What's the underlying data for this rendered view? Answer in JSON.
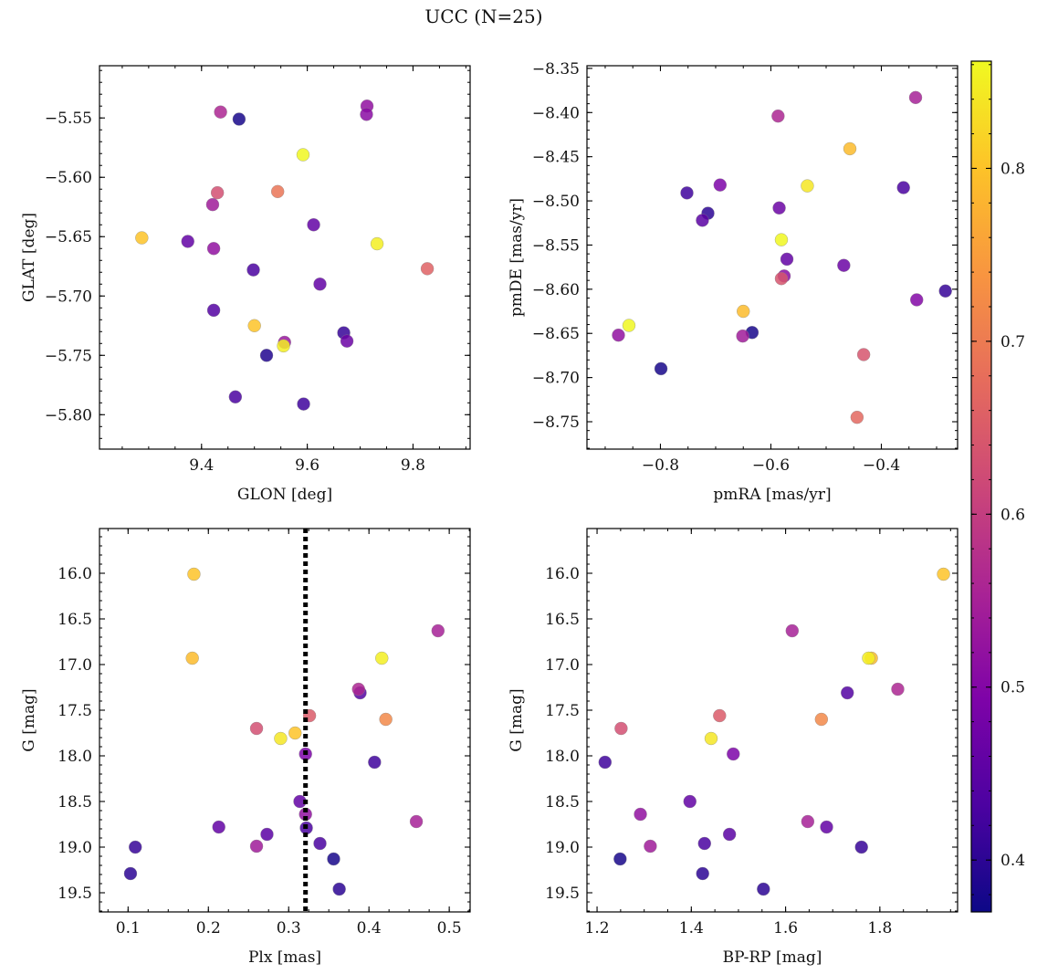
{
  "figure": {
    "title": "UCC (N=25)",
    "colorbar": {
      "min": 0.37,
      "max": 0.862,
      "colormap": "plasma",
      "ticks": [
        0.4,
        0.5,
        0.6,
        0.7,
        0.8
      ],
      "tick_labels": [
        "0.4",
        "0.5",
        "0.6",
        "0.7",
        "0.8"
      ]
    }
  },
  "chart_data": [
    {
      "id": "p1",
      "type": "scatter",
      "title": "",
      "xlabel": "GLON [deg]",
      "ylabel": "GLAT [deg]",
      "xlim": [
        9.207,
        9.908
      ],
      "ylim": [
        -5.829,
        -5.506
      ],
      "y_inverted": false,
      "xticks": [
        9.4,
        9.6,
        9.8
      ],
      "xtick_labels": [
        "9.4",
        "9.6",
        "9.8"
      ],
      "yticks": [
        -5.55,
        -5.6,
        -5.65,
        -5.7,
        -5.75,
        -5.8
      ],
      "ytick_labels": [
        "−5.55",
        "−5.60",
        "−5.65",
        "−5.70",
        "−5.75",
        "−5.80"
      ],
      "points": [
        {
          "x": 9.713,
          "y": -5.54,
          "c": 0.52
        },
        {
          "x": 9.712,
          "y": -5.547,
          "c": 0.51
        },
        {
          "x": 9.436,
          "y": -5.545,
          "c": 0.56
        },
        {
          "x": 9.471,
          "y": -5.551,
          "c": 0.38
        },
        {
          "x": 9.592,
          "y": -5.581,
          "c": 0.86
        },
        {
          "x": 9.544,
          "y": -5.612,
          "c": 0.69
        },
        {
          "x": 9.43,
          "y": -5.613,
          "c": 0.63
        },
        {
          "x": 9.421,
          "y": -5.623,
          "c": 0.54
        },
        {
          "x": 9.612,
          "y": -5.64,
          "c": 0.46
        },
        {
          "x": 9.287,
          "y": -5.651,
          "c": 0.8
        },
        {
          "x": 9.374,
          "y": -5.654,
          "c": 0.46
        },
        {
          "x": 9.732,
          "y": -5.656,
          "c": 0.85
        },
        {
          "x": 9.423,
          "y": -5.66,
          "c": 0.52
        },
        {
          "x": 9.827,
          "y": -5.677,
          "c": 0.66
        },
        {
          "x": 9.498,
          "y": -5.678,
          "c": 0.43
        },
        {
          "x": 9.624,
          "y": -5.69,
          "c": 0.46
        },
        {
          "x": 9.423,
          "y": -5.712,
          "c": 0.44
        },
        {
          "x": 9.5,
          "y": -5.725,
          "c": 0.8
        },
        {
          "x": 9.669,
          "y": -5.731,
          "c": 0.41
        },
        {
          "x": 9.557,
          "y": -5.739,
          "c": 0.53
        },
        {
          "x": 9.675,
          "y": -5.738,
          "c": 0.47
        },
        {
          "x": 9.555,
          "y": -5.742,
          "c": 0.85
        },
        {
          "x": 9.523,
          "y": -5.75,
          "c": 0.39
        },
        {
          "x": 9.464,
          "y": -5.785,
          "c": 0.43
        },
        {
          "x": 9.593,
          "y": -5.791,
          "c": 0.42
        }
      ]
    },
    {
      "id": "p2",
      "type": "scatter",
      "title": "",
      "xlabel": "pmRA [mas/yr]",
      "ylabel": "pmDE [mas/yr]",
      "xlim": [
        -0.933,
        -0.262
      ],
      "ylim": [
        -8.781,
        -8.347
      ],
      "y_inverted": false,
      "xticks": [
        -0.8,
        -0.6,
        -0.4
      ],
      "xtick_labels": [
        "−0.8",
        "−0.6",
        "−0.4"
      ],
      "yticks": [
        -8.35,
        -8.4,
        -8.45,
        -8.5,
        -8.55,
        -8.6,
        -8.65,
        -8.7,
        -8.75
      ],
      "ytick_labels": [
        "−8.35",
        "−8.40",
        "−8.45",
        "−8.50",
        "−8.55",
        "−8.60",
        "−8.65",
        "−8.70",
        "−8.75"
      ],
      "points": [
        {
          "x": -0.338,
          "y": -8.383,
          "c": 0.55
        },
        {
          "x": -0.587,
          "y": -8.404,
          "c": 0.56
        },
        {
          "x": -0.457,
          "y": -8.441,
          "c": 0.79
        },
        {
          "x": -0.534,
          "y": -8.483,
          "c": 0.84
        },
        {
          "x": -0.692,
          "y": -8.482,
          "c": 0.49
        },
        {
          "x": -0.752,
          "y": -8.491,
          "c": 0.42
        },
        {
          "x": -0.36,
          "y": -8.485,
          "c": 0.43
        },
        {
          "x": -0.585,
          "y": -8.508,
          "c": 0.47
        },
        {
          "x": -0.714,
          "y": -8.514,
          "c": 0.4
        },
        {
          "x": -0.724,
          "y": -8.522,
          "c": 0.45
        },
        {
          "x": -0.581,
          "y": -8.544,
          "c": 0.86
        },
        {
          "x": -0.571,
          "y": -8.566,
          "c": 0.46
        },
        {
          "x": -0.468,
          "y": -8.573,
          "c": 0.47
        },
        {
          "x": -0.576,
          "y": -8.585,
          "c": 0.51
        },
        {
          "x": -0.581,
          "y": -8.588,
          "c": 0.64
        },
        {
          "x": -0.284,
          "y": -8.602,
          "c": 0.41
        },
        {
          "x": -0.336,
          "y": -8.612,
          "c": 0.5
        },
        {
          "x": -0.65,
          "y": -8.625,
          "c": 0.79
        },
        {
          "x": -0.857,
          "y": -8.641,
          "c": 0.86
        },
        {
          "x": -0.634,
          "y": -8.649,
          "c": 0.38
        },
        {
          "x": -0.651,
          "y": -8.653,
          "c": 0.54
        },
        {
          "x": -0.876,
          "y": -8.652,
          "c": 0.52
        },
        {
          "x": -0.432,
          "y": -8.674,
          "c": 0.64
        },
        {
          "x": -0.799,
          "y": -8.69,
          "c": 0.38
        },
        {
          "x": -0.444,
          "y": -8.745,
          "c": 0.67
        }
      ]
    },
    {
      "id": "p3",
      "type": "scatter",
      "title": "",
      "xlabel": "Plx [mas]",
      "ylabel": "G [mag]",
      "xlim": [
        0.0644,
        0.526
      ],
      "ylim": [
        19.71,
        15.51
      ],
      "y_inverted": true,
      "xticks": [
        0.1,
        0.2,
        0.3,
        0.4,
        0.5
      ],
      "xtick_labels": [
        "0.1",
        "0.2",
        "0.3",
        "0.4",
        "0.5"
      ],
      "yticks": [
        16.0,
        16.5,
        17.0,
        17.5,
        18.0,
        18.5,
        19.0,
        19.5
      ],
      "ytick_labels": [
        "16.0",
        "16.5",
        "17.0",
        "17.5",
        "18.0",
        "18.5",
        "19.0",
        "19.5"
      ],
      "vline": {
        "x": 0.321,
        "style": "dotted"
      },
      "points": [
        {
          "x": 0.182,
          "y": 16.01,
          "c": 0.8
        },
        {
          "x": 0.486,
          "y": 16.63,
          "c": 0.55
        },
        {
          "x": 0.18,
          "y": 16.93,
          "c": 0.79
        },
        {
          "x": 0.416,
          "y": 16.93,
          "c": 0.85
        },
        {
          "x": 0.389,
          "y": 17.31,
          "c": 0.44
        },
        {
          "x": 0.387,
          "y": 17.27,
          "c": 0.56
        },
        {
          "x": 0.326,
          "y": 17.56,
          "c": 0.65
        },
        {
          "x": 0.421,
          "y": 17.6,
          "c": 0.72
        },
        {
          "x": 0.26,
          "y": 17.7,
          "c": 0.63
        },
        {
          "x": 0.308,
          "y": 17.75,
          "c": 0.8
        },
        {
          "x": 0.29,
          "y": 17.81,
          "c": 0.84
        },
        {
          "x": 0.321,
          "y": 17.98,
          "c": 0.49
        },
        {
          "x": 0.407,
          "y": 18.07,
          "c": 0.42
        },
        {
          "x": 0.314,
          "y": 18.5,
          "c": 0.46
        },
        {
          "x": 0.321,
          "y": 18.64,
          "c": 0.52
        },
        {
          "x": 0.459,
          "y": 18.72,
          "c": 0.55
        },
        {
          "x": 0.213,
          "y": 18.78,
          "c": 0.46
        },
        {
          "x": 0.322,
          "y": 18.79,
          "c": 0.43
        },
        {
          "x": 0.273,
          "y": 18.86,
          "c": 0.45
        },
        {
          "x": 0.339,
          "y": 18.96,
          "c": 0.43
        },
        {
          "x": 0.26,
          "y": 18.99,
          "c": 0.54
        },
        {
          "x": 0.109,
          "y": 19.0,
          "c": 0.41
        },
        {
          "x": 0.356,
          "y": 19.13,
          "c": 0.38
        },
        {
          "x": 0.103,
          "y": 19.29,
          "c": 0.4
        },
        {
          "x": 0.363,
          "y": 19.46,
          "c": 0.4
        }
      ]
    },
    {
      "id": "p4",
      "type": "scatter",
      "title": "",
      "xlabel": "BP-RP [mag]",
      "ylabel": "G [mag]",
      "xlim": [
        1.1786,
        1.9649
      ],
      "ylim": [
        19.71,
        15.51
      ],
      "y_inverted": true,
      "xticks": [
        1.2,
        1.4,
        1.6,
        1.8
      ],
      "xtick_labels": [
        "1.2",
        "1.4",
        "1.6",
        "1.8"
      ],
      "yticks": [
        16.0,
        16.5,
        17.0,
        17.5,
        18.0,
        18.5,
        19.0,
        19.5
      ],
      "ytick_labels": [
        "16.0",
        "16.5",
        "17.0",
        "17.5",
        "18.0",
        "18.5",
        "19.0",
        "19.5"
      ],
      "points": [
        {
          "x": 1.935,
          "y": 16.01,
          "c": 0.8
        },
        {
          "x": 1.614,
          "y": 16.63,
          "c": 0.55
        },
        {
          "x": 1.782,
          "y": 16.93,
          "c": 0.79
        },
        {
          "x": 1.776,
          "y": 16.93,
          "c": 0.85
        },
        {
          "x": 1.731,
          "y": 17.31,
          "c": 0.44
        },
        {
          "x": 1.838,
          "y": 17.27,
          "c": 0.56
        },
        {
          "x": 1.46,
          "y": 17.56,
          "c": 0.65
        },
        {
          "x": 1.676,
          "y": 17.6,
          "c": 0.72
        },
        {
          "x": 1.251,
          "y": 17.7,
          "c": 0.63
        },
        {
          "x": 1.442,
          "y": 17.81,
          "c": 0.84
        },
        {
          "x": 1.489,
          "y": 17.98,
          "c": 0.49
        },
        {
          "x": 1.217,
          "y": 18.07,
          "c": 0.42
        },
        {
          "x": 1.397,
          "y": 18.5,
          "c": 0.46
        },
        {
          "x": 1.292,
          "y": 18.64,
          "c": 0.52
        },
        {
          "x": 1.647,
          "y": 18.72,
          "c": 0.55
        },
        {
          "x": 1.687,
          "y": 18.78,
          "c": 0.46
        },
        {
          "x": 1.481,
          "y": 18.86,
          "c": 0.45
        },
        {
          "x": 1.428,
          "y": 18.96,
          "c": 0.43
        },
        {
          "x": 1.313,
          "y": 18.99,
          "c": 0.54
        },
        {
          "x": 1.761,
          "y": 19.0,
          "c": 0.41
        },
        {
          "x": 1.249,
          "y": 19.13,
          "c": 0.38
        },
        {
          "x": 1.424,
          "y": 19.29,
          "c": 0.4
        },
        {
          "x": 1.553,
          "y": 19.46,
          "c": 0.4
        }
      ]
    }
  ]
}
